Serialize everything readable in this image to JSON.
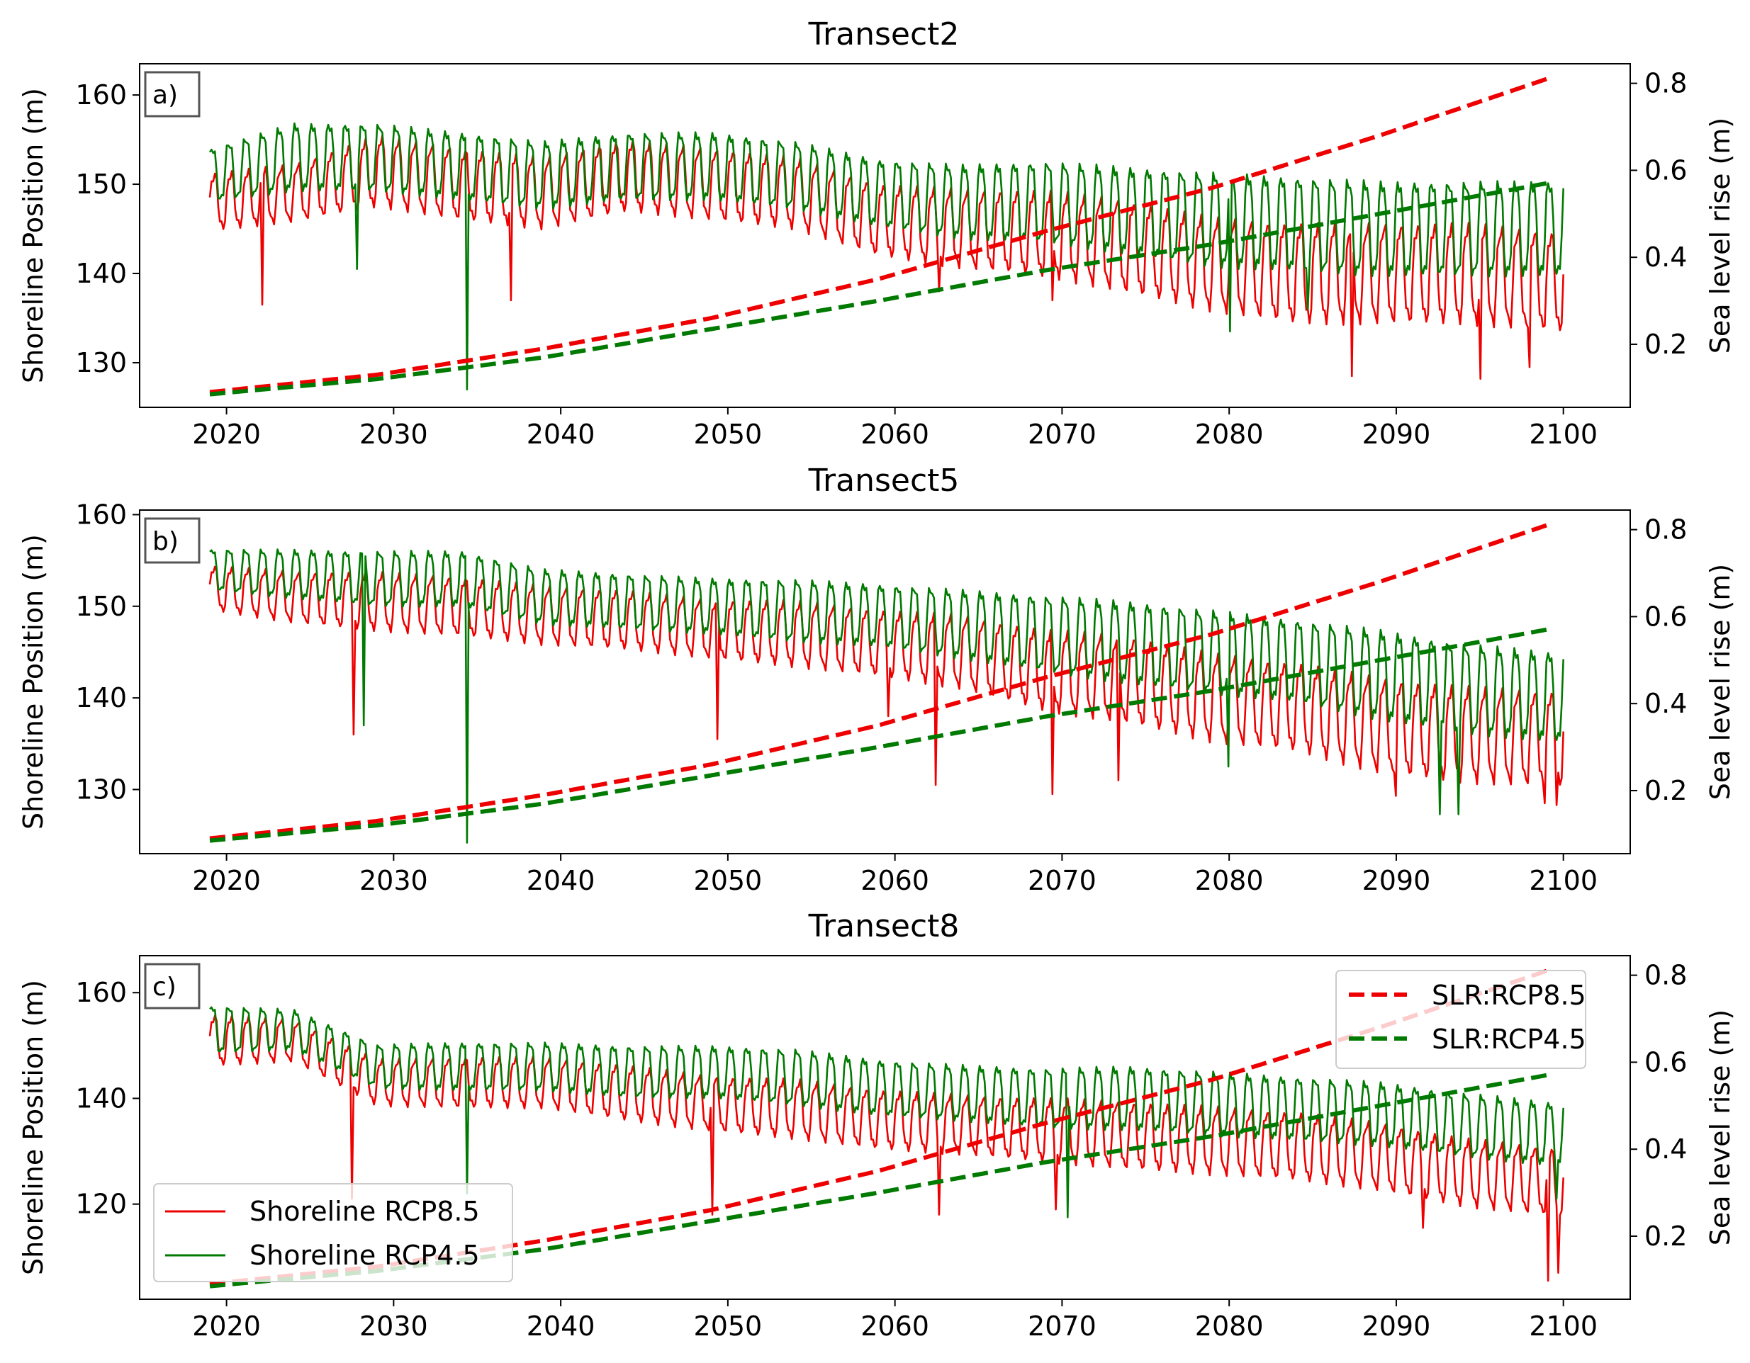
{
  "chart_data": [
    {
      "type": "line",
      "title": "Transect2",
      "panel_label": "a)",
      "ylabel": "Shoreline Position (m)",
      "y2label": "Sea level rise (m)",
      "xlim": [
        2014.8,
        2104.0
      ],
      "ylim": [
        125,
        163.5
      ],
      "y2lim": [
        0.055,
        0.845
      ],
      "xticks": [
        2020,
        2030,
        2040,
        2050,
        2060,
        2070,
        2080,
        2090,
        2100
      ],
      "yticks": [
        130,
        140,
        150,
        160
      ],
      "y2ticks": [
        0.2,
        0.4,
        0.6,
        0.8
      ],
      "shoreline_x_range": [
        2019.0,
        2100.0
      ],
      "shoreline_rcp85": {
        "name": "Shoreline RCP8.5",
        "x": [
          2019,
          2024,
          2029,
          2034,
          2039,
          2044,
          2049,
          2054,
          2059,
          2064,
          2069,
          2074,
          2079,
          2084,
          2089,
          2094,
          2100
        ],
        "mean": [
          148,
          149,
          151.5,
          150,
          149,
          151,
          150,
          149,
          146,
          145,
          144.5,
          143,
          141,
          140,
          140,
          140,
          139
        ],
        "amplitude": [
          4,
          4,
          5,
          5,
          5,
          5,
          5,
          5,
          5,
          5.5,
          6,
          6.5,
          6.5,
          7,
          7,
          7,
          7
        ],
        "spikes": [
          {
            "x": 2022.1,
            "y": 136.5
          },
          {
            "x": 2037.0,
            "y": 137
          },
          {
            "x": 2062.6,
            "y": 138
          },
          {
            "x": 2069.4,
            "y": 137
          },
          {
            "x": 2087.3,
            "y": 128.5
          },
          {
            "x": 2095.0,
            "y": 128.2
          },
          {
            "x": 2098.0,
            "y": 129.5
          }
        ]
      },
      "shoreline_rcp45": {
        "name": "Shoreline RCP4.5",
        "x": [
          2019,
          2024,
          2029,
          2034,
          2039,
          2044,
          2049,
          2054,
          2059,
          2064,
          2069,
          2074,
          2079,
          2084,
          2089,
          2094,
          2100
        ],
        "mean": [
          151,
          153,
          153,
          152,
          151,
          152,
          152,
          151,
          149,
          148,
          148,
          147,
          146,
          145.5,
          145,
          145,
          145
        ],
        "amplitude": [
          4,
          5,
          5,
          5,
          5,
          5,
          5,
          5,
          5,
          5.5,
          6,
          6.5,
          7,
          7,
          7,
          7,
          7
        ],
        "spikes": [
          {
            "x": 2034.4,
            "y": 127
          },
          {
            "x": 2027.8,
            "y": 140.5
          },
          {
            "x": 2080.1,
            "y": 133.5
          },
          {
            "x": 2084.7,
            "y": 136
          }
        ]
      },
      "slr_rcp85": {
        "name": "SLR:RCP8.5",
        "x": [
          2019,
          2029,
          2039,
          2049,
          2059,
          2069,
          2079,
          2089,
          2099
        ],
        "y": [
          0.09,
          0.13,
          0.19,
          0.26,
          0.35,
          0.46,
          0.56,
          0.68,
          0.81
        ]
      },
      "slr_rcp45": {
        "name": "SLR:RCP4.5",
        "x": [
          2019,
          2029,
          2039,
          2049,
          2059,
          2069,
          2079,
          2089,
          2099
        ],
        "y": [
          0.085,
          0.12,
          0.17,
          0.235,
          0.3,
          0.37,
          0.43,
          0.5,
          0.57
        ]
      }
    },
    {
      "type": "line",
      "title": "Transect5",
      "panel_label": "b)",
      "ylabel": "Shoreline Position (m)",
      "y2label": "Sea level rise (m)",
      "xlim": [
        2014.8,
        2104.0
      ],
      "ylim": [
        123,
        160.5
      ],
      "y2lim": [
        0.055,
        0.845
      ],
      "xticks": [
        2020,
        2030,
        2040,
        2050,
        2060,
        2070,
        2080,
        2090,
        2100
      ],
      "yticks": [
        130,
        140,
        150,
        160
      ],
      "y2ticks": [
        0.2,
        0.4,
        0.6,
        0.8
      ],
      "shoreline_x_range": [
        2019.0,
        2100.0
      ],
      "shoreline_rcp85": {
        "name": "Shoreline RCP8.5",
        "x": [
          2019,
          2024,
          2029,
          2034,
          2039,
          2044,
          2049,
          2054,
          2059,
          2064,
          2069,
          2074,
          2079,
          2084,
          2089,
          2094,
          2100
        ],
        "mean": [
          152,
          151,
          150.5,
          150,
          149,
          148.5,
          147.5,
          147,
          146,
          145,
          143,
          142,
          140,
          139,
          137,
          136,
          135.5
        ],
        "amplitude": [
          3,
          3.5,
          4,
          4,
          4,
          4,
          4,
          4.5,
          4.5,
          5,
          5.5,
          6,
          6,
          6,
          6.5,
          6.5,
          6.5
        ],
        "spikes": [
          {
            "x": 2027.6,
            "y": 136
          },
          {
            "x": 2049.4,
            "y": 135.5
          },
          {
            "x": 2059.6,
            "y": 138
          },
          {
            "x": 2062.4,
            "y": 130.5
          },
          {
            "x": 2069.4,
            "y": 129.5
          },
          {
            "x": 2073.4,
            "y": 131
          },
          {
            "x": 2090.0,
            "y": 129.3
          },
          {
            "x": 2098.9,
            "y": 128.5
          },
          {
            "x": 2099.6,
            "y": 128.3
          }
        ]
      },
      "shoreline_rcp45": {
        "name": "Shoreline RCP4.5",
        "x": [
          2019,
          2024,
          2029,
          2034,
          2039,
          2044,
          2049,
          2054,
          2059,
          2064,
          2069,
          2074,
          2079,
          2084,
          2089,
          2094,
          2100
        ],
        "mean": [
          154,
          153.5,
          153,
          153,
          151,
          150.5,
          150,
          149.5,
          149,
          148,
          147,
          146,
          145,
          144,
          142.5,
          141,
          140
        ],
        "amplitude": [
          3,
          3.5,
          4,
          4,
          4,
          4,
          4,
          4.5,
          4.5,
          5,
          5.5,
          6,
          6,
          6,
          6.5,
          6.5,
          6.5
        ],
        "spikes": [
          {
            "x": 2034.4,
            "y": 124.2
          },
          {
            "x": 2028.2,
            "y": 137
          },
          {
            "x": 2080.0,
            "y": 132.5
          },
          {
            "x": 2092.6,
            "y": 127.3
          },
          {
            "x": 2093.7,
            "y": 127.3
          }
        ]
      },
      "slr_rcp85": {
        "name": "SLR:RCP8.5",
        "x": [
          2019,
          2029,
          2039,
          2049,
          2059,
          2069,
          2079,
          2089,
          2099
        ],
        "y": [
          0.09,
          0.13,
          0.19,
          0.26,
          0.35,
          0.46,
          0.56,
          0.68,
          0.81
        ]
      },
      "slr_rcp45": {
        "name": "SLR:RCP4.5",
        "x": [
          2019,
          2029,
          2039,
          2049,
          2059,
          2069,
          2079,
          2089,
          2099
        ],
        "y": [
          0.085,
          0.12,
          0.17,
          0.235,
          0.3,
          0.37,
          0.43,
          0.5,
          0.57
        ]
      }
    },
    {
      "type": "line",
      "title": "Transect8",
      "panel_label": "c)",
      "ylabel": "Shoreline Position (m)",
      "y2label": "Sea level rise (m)",
      "xlim": [
        2014.8,
        2104.0
      ],
      "ylim": [
        102,
        167
      ],
      "y2lim": [
        0.055,
        0.845
      ],
      "xticks": [
        2020,
        2030,
        2040,
        2050,
        2060,
        2070,
        2080,
        2090,
        2100
      ],
      "yticks": [
        120,
        140,
        160
      ],
      "y2ticks": [
        0.2,
        0.4,
        0.6,
        0.8
      ],
      "shoreline_x_range": [
        2019.0,
        2100.0
      ],
      "shoreline_rcp85": {
        "name": "Shoreline RCP8.5",
        "x": [
          2019,
          2024,
          2029,
          2034,
          2039,
          2044,
          2049,
          2054,
          2059,
          2064,
          2069,
          2074,
          2079,
          2084,
          2089,
          2094,
          2100
        ],
        "mean": [
          151,
          151,
          143,
          143,
          143,
          141,
          139,
          138,
          136,
          135,
          134,
          133,
          132,
          131,
          129,
          126,
          124
        ],
        "amplitude": [
          6,
          5,
          5.5,
          6,
          6,
          6.5,
          6.5,
          7,
          7,
          7,
          7.5,
          8,
          8,
          8,
          8,
          8,
          8
        ],
        "spikes": [
          {
            "x": 2027.5,
            "y": 121
          },
          {
            "x": 2049.1,
            "y": 118
          },
          {
            "x": 2062.6,
            "y": 118
          },
          {
            "x": 2069.6,
            "y": 119
          },
          {
            "x": 2091.6,
            "y": 115.5
          },
          {
            "x": 2099.1,
            "y": 105.5
          },
          {
            "x": 2099.7,
            "y": 107
          }
        ]
      },
      "shoreline_rcp45": {
        "name": "Shoreline RCP4.5",
        "x": [
          2019,
          2024,
          2029,
          2034,
          2039,
          2044,
          2049,
          2054,
          2059,
          2064,
          2069,
          2074,
          2079,
          2084,
          2089,
          2094,
          2100
        ],
        "mean": [
          153,
          153,
          146,
          146,
          146,
          145,
          145,
          144,
          142,
          141,
          140,
          140,
          139,
          138,
          137,
          135,
          133
        ],
        "amplitude": [
          6,
          5,
          5.5,
          6,
          6,
          6.5,
          6.5,
          7,
          7,
          7,
          7.5,
          8,
          8,
          8,
          8,
          8,
          8
        ],
        "spikes": [
          {
            "x": 2034.4,
            "y": 122
          },
          {
            "x": 2070.3,
            "y": 117.5
          },
          {
            "x": 2099.6,
            "y": 121
          }
        ]
      },
      "slr_rcp85": {
        "name": "SLR:RCP8.5",
        "x": [
          2019,
          2029,
          2039,
          2049,
          2059,
          2069,
          2079,
          2089,
          2099
        ],
        "y": [
          0.09,
          0.13,
          0.19,
          0.26,
          0.35,
          0.46,
          0.56,
          0.68,
          0.81
        ]
      },
      "slr_rcp45": {
        "name": "SLR:RCP4.5",
        "x": [
          2019,
          2029,
          2039,
          2049,
          2059,
          2069,
          2079,
          2089,
          2099
        ],
        "y": [
          0.085,
          0.12,
          0.17,
          0.235,
          0.3,
          0.37,
          0.43,
          0.5,
          0.57
        ]
      }
    }
  ],
  "legend_lines": {
    "placement": "lower-left of panel c",
    "items": [
      {
        "label": "Shoreline RCP8.5",
        "color": "#ee0000",
        "style": "solid"
      },
      {
        "label": "Shoreline RCP4.5",
        "color": "#007a00",
        "style": "solid"
      }
    ]
  },
  "legend_slr": {
    "placement": "upper-right of panel c",
    "items": [
      {
        "label": "SLR:RCP8.5",
        "color": "#ee0000",
        "style": "dashed"
      },
      {
        "label": "SLR:RCP4.5",
        "color": "#007a00",
        "style": "dashed"
      }
    ]
  },
  "colors": {
    "rcp85": "#ee0000",
    "rcp45": "#007a00",
    "axis": "#000000",
    "label_box_edge": "#555555"
  }
}
